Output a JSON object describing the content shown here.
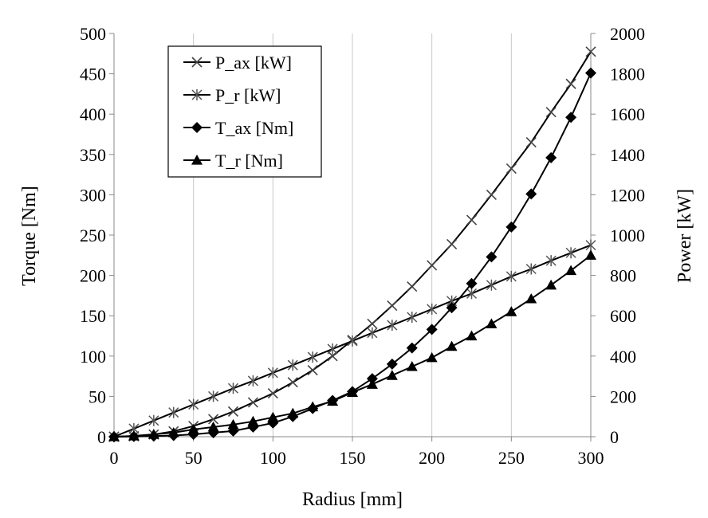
{
  "chart_data": {
    "type": "line",
    "xlabel": "Radius [mm]",
    "ylabel_left": "Torque [Nm]",
    "ylabel_right": "Power [kW]",
    "xlim": [
      0,
      300
    ],
    "ylim_left": [
      0,
      500
    ],
    "ylim_right": [
      0,
      2000
    ],
    "x_ticks": [
      "0",
      "50",
      "100",
      "150",
      "200",
      "250",
      "300"
    ],
    "y_left_ticks": [
      "0",
      "50",
      "100",
      "150",
      "200",
      "250",
      "300",
      "350",
      "400",
      "450",
      "500"
    ],
    "y_right_ticks": [
      "0",
      "200",
      "400",
      "600",
      "800",
      "1000",
      "1200",
      "1400",
      "1600",
      "1800",
      "2000"
    ],
    "grid": "vertical",
    "legend_position": "top-left",
    "x": [
      0,
      12.5,
      25,
      37.5,
      50,
      62.5,
      75,
      87.5,
      100,
      112.5,
      125,
      137.5,
      150,
      162.5,
      175,
      187.5,
      200,
      212.5,
      225,
      237.5,
      250,
      262.5,
      275,
      287.5,
      300
    ],
    "series": [
      {
        "name": "P_ax [kW]",
        "marker": "x",
        "axis": "right",
        "values": [
          0,
          2,
          11,
          27,
          53,
          87,
          125,
          170,
          215,
          270,
          330,
          400,
          480,
          560,
          650,
          745,
          850,
          955,
          1075,
          1200,
          1330,
          1460,
          1610,
          1750,
          1910
        ]
      },
      {
        "name": "P_r [kW]",
        "marker": "asterisk",
        "axis": "right",
        "values": [
          0,
          40,
          80,
          120,
          160,
          200,
          240,
          277,
          317,
          355,
          395,
          435,
          475,
          515,
          553,
          593,
          633,
          673,
          710,
          752,
          795,
          832,
          873,
          912,
          950
        ]
      },
      {
        "name": "T_ax [Nm]",
        "marker": "diamond",
        "axis": "left",
        "values": [
          0,
          0.3,
          0.7,
          1.5,
          3,
          5,
          7,
          12,
          17,
          25,
          35,
          45,
          56,
          72,
          90,
          110,
          133,
          160,
          190,
          223,
          260,
          301,
          346,
          396,
          451
        ]
      },
      {
        "name": "T_r [Nm]",
        "marker": "triangle",
        "axis": "left",
        "values": [
          0,
          1,
          3,
          5,
          9,
          12,
          15,
          19,
          24,
          29,
          37,
          44,
          55,
          65,
          76,
          87,
          98,
          112,
          125,
          140,
          155,
          171,
          188,
          206,
          225
        ]
      }
    ]
  }
}
